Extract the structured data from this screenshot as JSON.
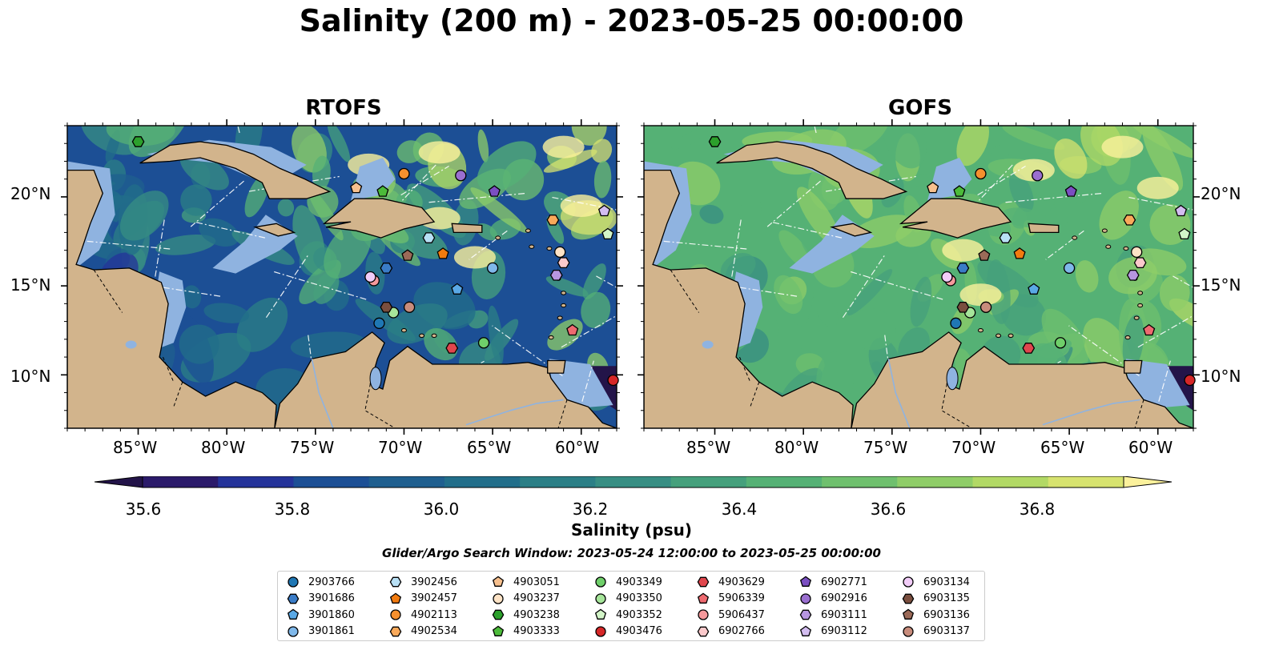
{
  "title": "Salinity (200 m) - 2023-05-25 00:00:00",
  "panels": [
    {
      "title": "RTOFS"
    },
    {
      "title": "GOFS"
    }
  ],
  "lon_ticks": [
    "85°W",
    "80°W",
    "75°W",
    "70°W",
    "65°W",
    "60°W"
  ],
  "lat_ticks": [
    "20°N",
    "15°N",
    "10°N"
  ],
  "map_extent": {
    "lon": [
      -89,
      -58
    ],
    "lat": [
      7,
      24
    ]
  },
  "colorbar": {
    "label": "Salinity (psu)",
    "ticks": [
      "35.6",
      "35.8",
      "36.0",
      "36.2",
      "36.4",
      "36.6",
      "36.8"
    ],
    "range": [
      35.55,
      36.95
    ],
    "colors": [
      "#2b1a6a",
      "#24339a",
      "#1c4f95",
      "#1f5f8f",
      "#216e8a",
      "#2b7f86",
      "#378e83",
      "#45a07c",
      "#55b175",
      "#6fc06e",
      "#8fcd68",
      "#b2d965",
      "#d7e36f"
    ],
    "over_color": "#fbf19c",
    "under_color": "#231449"
  },
  "search_window": "Glider/Argo Search Window: 2023-05-24 12:00:00 to 2023-05-25 00:00:00",
  "platforms": [
    {
      "id": "2903766",
      "marker": "circle",
      "color": "#1f77b4",
      "lon": -71.4,
      "lat": 12.9
    },
    {
      "id": "3901686",
      "marker": "hexagon",
      "color": "#3a7cc7",
      "lon": -71.0,
      "lat": 16.0
    },
    {
      "id": "3901860",
      "marker": "pentagon",
      "color": "#5aa9e6",
      "lon": -67.0,
      "lat": 14.8
    },
    {
      "id": "3901861",
      "marker": "circle",
      "color": "#7fb8ea",
      "lon": -65.0,
      "lat": 16.0
    },
    {
      "id": "3902456",
      "marker": "hexagon",
      "color": "#b8e0f5",
      "lon": -68.6,
      "lat": 17.7
    },
    {
      "id": "3902457",
      "marker": "pentagon",
      "color": "#f27b0f",
      "lon": -67.8,
      "lat": 16.8
    },
    {
      "id": "4902113",
      "marker": "circle",
      "color": "#f5902e",
      "lon": -70.0,
      "lat": 21.3
    },
    {
      "id": "4902534",
      "marker": "hexagon",
      "color": "#f9a95a",
      "lon": -61.6,
      "lat": 18.7
    },
    {
      "id": "4903051",
      "marker": "pentagon",
      "color": "#f7c08e",
      "lon": -72.7,
      "lat": 20.5
    },
    {
      "id": "4903237",
      "marker": "circle",
      "color": "#fde3c6",
      "lon": -61.2,
      "lat": 16.9
    },
    {
      "id": "4903238",
      "marker": "hexagon",
      "color": "#2ca02c",
      "lon": -85.0,
      "lat": 23.1
    },
    {
      "id": "4903333",
      "marker": "pentagon",
      "color": "#4cbb3a",
      "lon": -71.2,
      "lat": 20.3
    },
    {
      "id": "4903349",
      "marker": "circle",
      "color": "#6fcf6a",
      "lon": -65.5,
      "lat": 11.8
    },
    {
      "id": "4903350",
      "marker": "circle",
      "color": "#a6e59a",
      "lon": -70.6,
      "lat": 13.5
    },
    {
      "id": "4903352",
      "marker": "pentagon",
      "color": "#d3f5c8",
      "lon": -58.5,
      "lat": 17.9
    },
    {
      "id": "4903476",
      "marker": "circle",
      "color": "#d62728",
      "lon": -58.2,
      "lat": 9.7
    },
    {
      "id": "4903629",
      "marker": "hexagon",
      "color": "#e0464d",
      "lon": -67.3,
      "lat": 11.5
    },
    {
      "id": "5906339",
      "marker": "pentagon",
      "color": "#ee6a70",
      "lon": -60.5,
      "lat": 12.5
    },
    {
      "id": "5906437",
      "marker": "circle",
      "color": "#f5999c",
      "lon": -71.7,
      "lat": 15.3
    },
    {
      "id": "6902766",
      "marker": "hexagon",
      "color": "#fbc9cb",
      "lon": -61.0,
      "lat": 16.3
    },
    {
      "id": "6902771",
      "marker": "pentagon",
      "color": "#7b4fc2",
      "lon": -64.9,
      "lat": 20.3
    },
    {
      "id": "6902916",
      "marker": "circle",
      "color": "#9a6fd0",
      "lon": -66.8,
      "lat": 21.2
    },
    {
      "id": "6903111",
      "marker": "hexagon",
      "color": "#b796e0",
      "lon": -61.4,
      "lat": 15.6
    },
    {
      "id": "6903112",
      "marker": "pentagon",
      "color": "#d3bdf0",
      "lon": -58.7,
      "lat": 19.2
    },
    {
      "id": "6903134",
      "marker": "circle",
      "color": "#f2cdf8",
      "lon": -71.9,
      "lat": 15.5
    },
    {
      "id": "6903135",
      "marker": "hexagon",
      "color": "#7a4e3e",
      "lon": -71.0,
      "lat": 13.8
    },
    {
      "id": "6903136",
      "marker": "pentagon",
      "color": "#9b6a58",
      "lon": -69.8,
      "lat": 16.7
    },
    {
      "id": "6903137",
      "marker": "circle",
      "color": "#c88c7c",
      "lon": -69.7,
      "lat": 13.8
    }
  ]
}
